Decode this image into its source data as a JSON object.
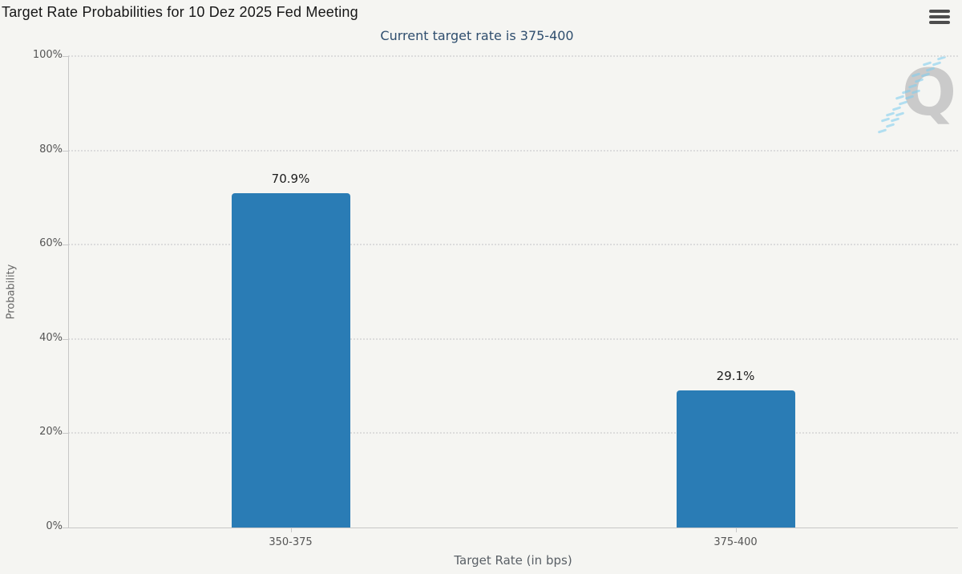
{
  "header": {
    "title": "Target Rate Probabilities for 10 Dez 2025 Fed Meeting",
    "menu_icon": "hamburger-icon"
  },
  "watermark": {
    "letter": "Q"
  },
  "colors": {
    "background": "#f5f5f2",
    "bar": "#2a7cb5",
    "title": "#161616",
    "subtitle": "#2f4e6e",
    "axis_line": "#c7c7c7",
    "grid_dot": "#dcdcdc",
    "tick_label": "#555555",
    "axis_title": "#666666",
    "watermark_q": "#c8c8c8",
    "watermark_dash": "#7dcCee"
  },
  "chart_data": {
    "type": "bar",
    "title": "Target Rate Probabilities for 10 Dez 2025 Fed Meeting",
    "subtitle": "Current target rate is 375-400",
    "categories": [
      "350-375",
      "375-400"
    ],
    "values": [
      70.9,
      29.1
    ],
    "value_labels": [
      "70.9%",
      "29.1%"
    ],
    "xlabel": "Target Rate (in bps)",
    "ylabel": "Probability",
    "ylim": [
      0,
      100
    ],
    "yticks": [
      0,
      20,
      40,
      60,
      80,
      100
    ],
    "ytick_labels": [
      "0%",
      "20%",
      "40%",
      "60%",
      "80%",
      "100%"
    ],
    "grid": "dotted-horizontal",
    "legend": "none",
    "bar_color": "#2a7cb5"
  }
}
